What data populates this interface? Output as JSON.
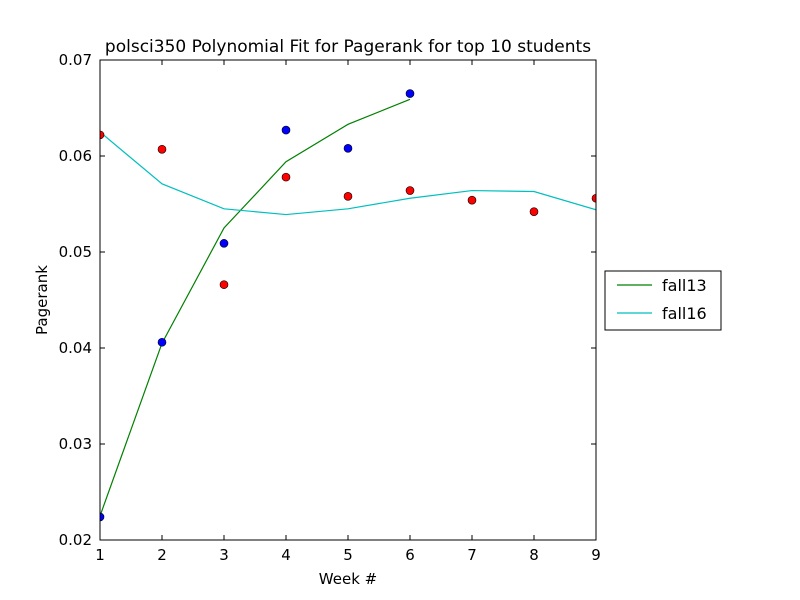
{
  "chart_data": {
    "type": "scatter",
    "title": "polsci350 Polynomial Fit for Pagerank for top 10 students",
    "xlabel": "Week #",
    "ylabel": "Pagerank",
    "xlim": [
      1,
      9
    ],
    "ylim": [
      0.02,
      0.07
    ],
    "x_ticks": [
      "1",
      "2",
      "3",
      "4",
      "5",
      "6",
      "7",
      "8",
      "9"
    ],
    "y_ticks": [
      "0.02",
      "0.03",
      "0.04",
      "0.05",
      "0.06",
      "0.07"
    ],
    "grid": false,
    "legend_position": "right-center outside",
    "series": [
      {
        "name": "fall13",
        "kind": "line",
        "color": "#008000",
        "x": [
          1,
          2,
          3,
          4,
          5,
          6
        ],
        "y": [
          0.0225,
          0.0405,
          0.0525,
          0.0594,
          0.0633,
          0.0659
        ]
      },
      {
        "name": "fall16",
        "kind": "line",
        "color": "#00bfbf",
        "x": [
          1,
          2,
          3,
          4,
          5,
          6,
          7,
          8,
          9
        ],
        "y": [
          0.0625,
          0.0571,
          0.0545,
          0.0539,
          0.0545,
          0.0556,
          0.0564,
          0.0563,
          0.0544
        ]
      },
      {
        "kind": "points",
        "color": "#0000ff",
        "x": [
          1,
          2,
          3,
          4,
          5,
          6
        ],
        "y": [
          0.0224,
          0.0406,
          0.0509,
          0.0627,
          0.0608,
          0.0665
        ]
      },
      {
        "kind": "points",
        "color": "#ff0000",
        "x": [
          1,
          2,
          3,
          4,
          5,
          6,
          7,
          8,
          9
        ],
        "y": [
          0.0622,
          0.0607,
          0.0466,
          0.0578,
          0.0558,
          0.0564,
          0.0554,
          0.0542,
          0.0556
        ]
      }
    ]
  }
}
